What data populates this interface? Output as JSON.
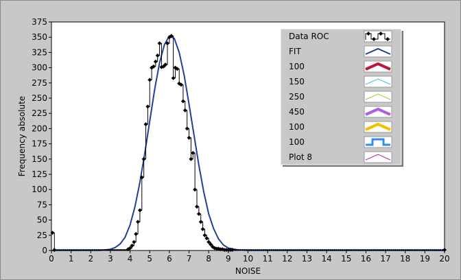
{
  "chart_data": {
    "type": "line",
    "xlabel": "NOISE",
    "ylabel": "Frequency absolute",
    "xlim": [
      0,
      20
    ],
    "ylim": [
      0,
      375
    ],
    "x_ticks": [
      0,
      1,
      2,
      3,
      4,
      5,
      6,
      7,
      8,
      9,
      10,
      11,
      12,
      13,
      14,
      15,
      16,
      17,
      18,
      19,
      20
    ],
    "y_ticks": [
      0,
      25,
      50,
      75,
      100,
      125,
      150,
      175,
      200,
      225,
      250,
      275,
      300,
      325,
      350,
      375
    ],
    "grid": false,
    "legend_position": "top-right",
    "series": [
      {
        "name": "Data ROC",
        "style": "step-with-diamonds",
        "color": "#000000",
        "x": [
          0.05,
          0.15,
          3.9,
          4.0,
          4.1,
          4.2,
          4.3,
          4.4,
          4.5,
          4.6,
          4.7,
          4.8,
          4.9,
          5.0,
          5.1,
          5.2,
          5.3,
          5.4,
          5.5,
          5.6,
          5.7,
          5.8,
          5.9,
          6.0,
          6.1,
          6.2,
          6.3,
          6.4,
          6.5,
          6.6,
          6.7,
          6.8,
          6.9,
          7.0,
          7.1,
          7.2,
          7.3,
          7.4,
          7.5,
          7.6,
          7.7,
          7.8,
          7.9,
          8.0,
          8.1,
          8.2,
          8.3,
          8.4,
          8.5,
          8.6,
          8.7,
          8.8,
          8.9,
          9.0,
          9.1,
          9.2,
          20.0
        ],
        "y": [
          29,
          1,
          2,
          4,
          8,
          14,
          27,
          47,
          66,
          120,
          150,
          207,
          236,
          280,
          300,
          302,
          310,
          320,
          340,
          301,
          302,
          305,
          340,
          350,
          352,
          283,
          300,
          298,
          274,
          272,
          245,
          230,
          200,
          185,
          150,
          160,
          100,
          72,
          60,
          47,
          35,
          25,
          20,
          14,
          10,
          6,
          4,
          3,
          3,
          2,
          2,
          1,
          1,
          1,
          1,
          1,
          1
        ]
      },
      {
        "name": "FIT",
        "style": "line",
        "color": "#1f3f99",
        "x": [
          0,
          1,
          2,
          2.5,
          3,
          3.25,
          3.5,
          3.75,
          4,
          4.25,
          4.5,
          4.75,
          5,
          5.25,
          5.5,
          5.75,
          6,
          6.25,
          6.5,
          6.75,
          7,
          7.25,
          7.5,
          7.75,
          8,
          8.25,
          8.5,
          8.75,
          9,
          9.5,
          10,
          11,
          12,
          14,
          16,
          18,
          20
        ],
        "y": [
          0,
          0,
          0,
          0.2,
          2,
          5,
          11,
          22,
          42,
          72,
          112,
          160,
          212,
          264,
          308,
          338,
          352,
          348,
          325,
          288,
          240,
          190,
          140,
          96,
          60,
          36,
          19,
          9,
          4,
          1,
          0,
          0,
          0,
          0,
          0,
          0,
          0
        ]
      },
      {
        "name": "100",
        "color": "#c0143c",
        "x": [],
        "y": []
      },
      {
        "name": "150",
        "color": "#4fb4e8",
        "x": [],
        "y": []
      },
      {
        "name": "250",
        "color": "#8ad040",
        "x": [],
        "y": []
      },
      {
        "name": "450",
        "color": "#b05ee0",
        "x": [],
        "y": []
      },
      {
        "name": "100",
        "color": "#f0c000",
        "x": [],
        "y": []
      },
      {
        "name": "100",
        "color": "#2f8fe8",
        "x": [],
        "y": []
      },
      {
        "name": "Plot 8",
        "color": "#c020a0",
        "x": [],
        "y": []
      }
    ]
  }
}
